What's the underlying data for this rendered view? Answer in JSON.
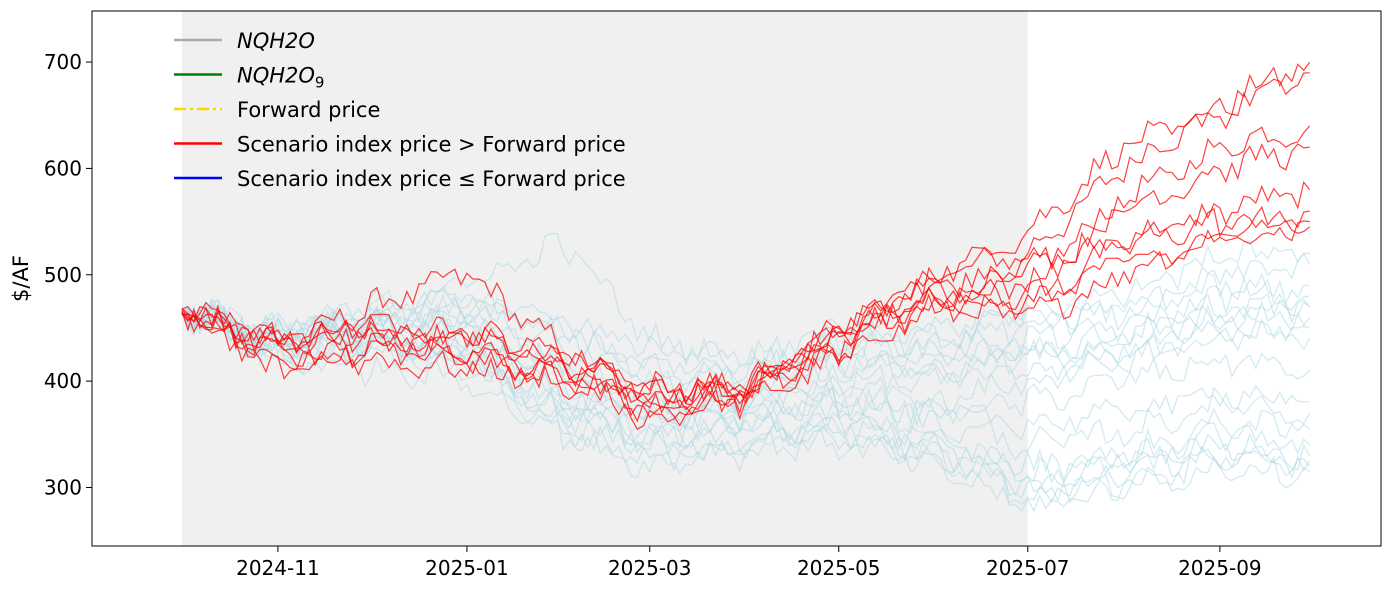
{
  "chart_data": {
    "type": "line",
    "title": "",
    "xlabel": "",
    "ylabel": "$/AF",
    "ylim": [
      245,
      748
    ],
    "xlim": [
      "2024-09-02",
      "2025-10-23"
    ],
    "x_ticks": [
      "2024-11",
      "2025-01",
      "2025-03",
      "2025-05",
      "2025-07",
      "2025-09"
    ],
    "y_ticks": [
      300,
      400,
      500,
      600,
      700
    ],
    "grid": false,
    "legend_position": "top-left",
    "shaded_region": {
      "start": "2024-10-01",
      "end": "2025-07-01",
      "color": "#f0f0f0"
    },
    "legend": [
      {
        "label": "NQH2O",
        "italic": true,
        "color": "#a9a9a9",
        "style": "solid"
      },
      {
        "label": "NQH2O",
        "subscript": "9",
        "italic": true,
        "color": "#008000",
        "style": "solid"
      },
      {
        "label": "Forward price",
        "color": "#ffd700",
        "style": "dashdot"
      },
      {
        "label": "Scenario index price > Forward price",
        "color": "#ff0000",
        "style": "solid"
      },
      {
        "label": "Scenario index price ≤ Forward price",
        "color": "#0000ff",
        "style": "solid"
      }
    ],
    "series_colors": {
      "above_forward": "#ff0000",
      "at_or_below_forward": "#add8e6"
    },
    "series": [
      {
        "group": "above_forward",
        "x": [
          "2024-10-01",
          "2024-11-01",
          "2024-12-01",
          "2025-01-01",
          "2025-02-01",
          "2025-03-01",
          "2025-04-01",
          "2025-05-01",
          "2025-06-01",
          "2025-07-01",
          "2025-08-01",
          "2025-09-01",
          "2025-09-30"
        ],
        "values": [
          468,
          440,
          450,
          445,
          420,
          395,
          390,
          450,
          500,
          520,
          600,
          660,
          700
        ]
      },
      {
        "group": "above_forward",
        "x": [
          "2024-10-01",
          "2024-11-01",
          "2024-12-01",
          "2025-01-01",
          "2025-02-01",
          "2025-03-01",
          "2025-04-01",
          "2025-05-01",
          "2025-06-01",
          "2025-07-01",
          "2025-08-01",
          "2025-09-01",
          "2025-09-30"
        ],
        "values": [
          465,
          430,
          470,
          500,
          430,
          380,
          385,
          440,
          480,
          500,
          570,
          620,
          640
        ]
      },
      {
        "group": "above_forward",
        "x": [
          "2024-10-01",
          "2024-11-01",
          "2024-12-01",
          "2025-01-01",
          "2025-02-01",
          "2025-03-01",
          "2025-04-01",
          "2025-05-01",
          "2025-06-01",
          "2025-07-01",
          "2025-08-01",
          "2025-09-01",
          "2025-09-30"
        ],
        "values": [
          462,
          445,
          440,
          420,
          410,
          390,
          395,
          430,
          490,
          510,
          530,
          560,
          580
        ]
      },
      {
        "group": "above_forward",
        "x": [
          "2024-10-01",
          "2024-11-01",
          "2024-12-01",
          "2025-01-01",
          "2025-02-01",
          "2025-03-01",
          "2025-04-01",
          "2025-05-01",
          "2025-06-01",
          "2025-07-01",
          "2025-08-01",
          "2025-09-01",
          "2025-09-30"
        ],
        "values": [
          468,
          420,
          430,
          440,
          415,
          370,
          380,
          420,
          470,
          460,
          500,
          540,
          560
        ]
      },
      {
        "group": "above_forward",
        "x": [
          "2024-10-01",
          "2024-11-01",
          "2024-12-01",
          "2025-01-01",
          "2025-02-01",
          "2025-03-01",
          "2025-04-01",
          "2025-05-01",
          "2025-06-01",
          "2025-07-01",
          "2025-08-01",
          "2025-09-01",
          "2025-09-30"
        ],
        "values": [
          466,
          440,
          455,
          430,
          400,
          385,
          400,
          440,
          500,
          540,
          620,
          650,
          690
        ]
      },
      {
        "group": "above_forward",
        "x": [
          "2024-10-01",
          "2024-11-01",
          "2024-12-01",
          "2025-01-01",
          "2025-02-01",
          "2025-03-01",
          "2025-04-01",
          "2025-05-01",
          "2025-06-01",
          "2025-07-01",
          "2025-08-01",
          "2025-09-01",
          "2025-09-30"
        ],
        "values": [
          464,
          410,
          430,
          425,
          405,
          360,
          390,
          450,
          495,
          470,
          530,
          550,
          545
        ]
      },
      {
        "group": "above_forward",
        "x": [
          "2024-10-01",
          "2024-11-01",
          "2024-12-01",
          "2025-01-01",
          "2025-02-01",
          "2025-03-01",
          "2025-04-01",
          "2025-05-01",
          "2025-06-01",
          "2025-07-01",
          "2025-08-01",
          "2025-09-01",
          "2025-09-30"
        ],
        "values": [
          468,
          435,
          445,
          445,
          430,
          395,
          385,
          430,
          480,
          490,
          560,
          600,
          620
        ]
      },
      {
        "group": "above_forward",
        "x": [
          "2024-10-01",
          "2024-11-01",
          "2024-12-01",
          "2025-01-01",
          "2025-02-01",
          "2025-03-01",
          "2025-04-01",
          "2025-05-01",
          "2025-06-01",
          "2025-07-01",
          "2025-08-01",
          "2025-09-01",
          "2025-09-30"
        ],
        "values": [
          463,
          425,
          420,
          410,
          400,
          375,
          392,
          445,
          470,
          480,
          510,
          530,
          550
        ]
      },
      {
        "group": "at_or_below_forward",
        "x": [
          "2024-10-01",
          "2024-11-01",
          "2024-12-01",
          "2025-01-01",
          "2025-02-01",
          "2025-03-01",
          "2025-04-01",
          "2025-05-01",
          "2025-06-01",
          "2025-07-01",
          "2025-08-01",
          "2025-09-01",
          "2025-09-30"
        ],
        "values": [
          466,
          440,
          450,
          430,
          360,
          340,
          350,
          360,
          350,
          310,
          330,
          340,
          330
        ]
      },
      {
        "group": "at_or_below_forward",
        "x": [
          "2024-10-01",
          "2024-11-01",
          "2024-12-01",
          "2025-01-01",
          "2025-02-01",
          "2025-03-01",
          "2025-04-01",
          "2025-05-01",
          "2025-06-01",
          "2025-07-01",
          "2025-08-01",
          "2025-09-01",
          "2025-09-30"
        ],
        "values": [
          464,
          430,
          440,
          420,
          370,
          350,
          360,
          350,
          330,
          300,
          320,
          330,
          320
        ]
      },
      {
        "group": "at_or_below_forward",
        "x": [
          "2024-10-01",
          "2024-11-01",
          "2024-12-01",
          "2025-01-01",
          "2025-02-01",
          "2025-03-01",
          "2025-04-01",
          "2025-05-01",
          "2025-06-01",
          "2025-07-01",
          "2025-08-01",
          "2025-09-01",
          "2025-09-30"
        ],
        "values": [
          468,
          450,
          460,
          460,
          410,
          380,
          390,
          420,
          420,
          430,
          430,
          460,
          470
        ]
      },
      {
        "group": "at_or_below_forward",
        "x": [
          "2024-10-01",
          "2024-11-01",
          "2024-12-01",
          "2025-01-01",
          "2025-02-01",
          "2025-03-01",
          "2025-04-01",
          "2025-05-01",
          "2025-06-01",
          "2025-07-01",
          "2025-08-01",
          "2025-09-01",
          "2025-09-30"
        ],
        "values": [
          466,
          445,
          455,
          470,
          430,
          400,
          400,
          430,
          430,
          440,
          450,
          480,
          490
        ]
      },
      {
        "group": "at_or_below_forward",
        "x": [
          "2024-10-01",
          "2024-11-01",
          "2024-12-01",
          "2025-01-01",
          "2025-02-01",
          "2025-03-01",
          "2025-04-01",
          "2025-05-01",
          "2025-06-01",
          "2025-07-01",
          "2025-08-01",
          "2025-09-01",
          "2025-09-30"
        ],
        "values": [
          465,
          420,
          430,
          440,
          390,
          360,
          370,
          380,
          370,
          380,
          400,
          420,
          410
        ]
      },
      {
        "group": "at_or_below_forward",
        "x": [
          "2024-10-01",
          "2024-11-01",
          "2024-12-01",
          "2025-01-01",
          "2025-02-01",
          "2025-03-01",
          "2025-04-01",
          "2025-05-01",
          "2025-06-01",
          "2025-07-01",
          "2025-08-01",
          "2025-09-01",
          "2025-09-30"
        ],
        "values": [
          467,
          435,
          445,
          450,
          380,
          340,
          340,
          370,
          340,
          290,
          310,
          350,
          340
        ]
      },
      {
        "group": "at_or_below_forward",
        "x": [
          "2024-10-01",
          "2024-11-01",
          "2024-12-01",
          "2025-01-01",
          "2025-02-01",
          "2025-03-01",
          "2025-04-01",
          "2025-05-01",
          "2025-06-01",
          "2025-07-01",
          "2025-08-01",
          "2025-09-01",
          "2025-09-30"
        ],
        "values": [
          463,
          440,
          460,
          480,
          440,
          420,
          410,
          440,
          440,
          460,
          460,
          500,
          510
        ]
      },
      {
        "group": "at_or_below_forward",
        "x": [
          "2024-10-01",
          "2024-11-01",
          "2024-12-01",
          "2025-01-01",
          "2025-02-01",
          "2025-03-01",
          "2025-04-01",
          "2025-05-01",
          "2025-06-01",
          "2025-07-01",
          "2025-08-01",
          "2025-09-01",
          "2025-09-30"
        ],
        "values": [
          466,
          430,
          440,
          420,
          350,
          320,
          340,
          340,
          320,
          280,
          300,
          330,
          325
        ]
      },
      {
        "group": "at_or_below_forward",
        "x": [
          "2024-10-01",
          "2024-11-01",
          "2024-12-01",
          "2025-01-01",
          "2025-02-01",
          "2025-03-01",
          "2025-04-01",
          "2025-05-01",
          "2025-06-01",
          "2025-07-01",
          "2025-08-01",
          "2025-09-01",
          "2025-09-30"
        ],
        "values": [
          468,
          450,
          470,
          490,
          530,
          440,
          420,
          420,
          410,
          420,
          440,
          460,
          460
        ]
      },
      {
        "group": "at_or_below_forward",
        "x": [
          "2024-10-01",
          "2024-11-01",
          "2024-12-01",
          "2025-01-01",
          "2025-02-01",
          "2025-03-01",
          "2025-04-01",
          "2025-05-01",
          "2025-06-01",
          "2025-07-01",
          "2025-08-01",
          "2025-09-01",
          "2025-09-30"
        ],
        "values": [
          464,
          425,
          435,
          430,
          380,
          360,
          380,
          400,
          380,
          400,
          420,
          440,
          450
        ]
      },
      {
        "group": "at_or_below_forward",
        "x": [
          "2024-10-01",
          "2024-11-01",
          "2024-12-01",
          "2025-01-01",
          "2025-02-01",
          "2025-03-01",
          "2025-04-01",
          "2025-05-01",
          "2025-06-01",
          "2025-07-01",
          "2025-08-01",
          "2025-09-01",
          "2025-09-30"
        ],
        "values": [
          466,
          445,
          455,
          440,
          400,
          370,
          360,
          390,
          370,
          360,
          370,
          390,
          380
        ]
      },
      {
        "group": "at_or_below_forward",
        "x": [
          "2024-10-01",
          "2024-11-01",
          "2024-12-01",
          "2025-01-01",
          "2025-02-01",
          "2025-03-01",
          "2025-04-01",
          "2025-05-01",
          "2025-06-01",
          "2025-07-01",
          "2025-08-01",
          "2025-09-01",
          "2025-09-30"
        ],
        "values": [
          465,
          440,
          460,
          470,
          450,
          410,
          400,
          430,
          440,
          450,
          470,
          490,
          480
        ]
      },
      {
        "group": "at_or_below_forward",
        "x": [
          "2024-10-01",
          "2024-11-01",
          "2024-12-01",
          "2025-01-01",
          "2025-02-01",
          "2025-03-01",
          "2025-04-01",
          "2025-05-01",
          "2025-06-01",
          "2025-07-01",
          "2025-08-01",
          "2025-09-01",
          "2025-09-30"
        ],
        "values": [
          467,
          420,
          410,
          400,
          350,
          330,
          330,
          360,
          330,
          300,
          300,
          320,
          315
        ]
      },
      {
        "group": "at_or_below_forward",
        "x": [
          "2024-10-01",
          "2024-11-01",
          "2024-12-01",
          "2025-01-01",
          "2025-02-01",
          "2025-03-01",
          "2025-04-01",
          "2025-05-01",
          "2025-06-01",
          "2025-07-01",
          "2025-08-01",
          "2025-09-01",
          "2025-09-30"
        ],
        "values": [
          463,
          430,
          450,
          460,
          420,
          390,
          380,
          410,
          410,
          430,
          440,
          470,
          470
        ]
      },
      {
        "group": "at_or_below_forward",
        "x": [
          "2024-10-01",
          "2024-11-01",
          "2024-12-01",
          "2025-01-01",
          "2025-02-01",
          "2025-03-01",
          "2025-04-01",
          "2025-05-01",
          "2025-06-01",
          "2025-07-01",
          "2025-08-01",
          "2025-09-01",
          "2025-09-30"
        ],
        "values": [
          468,
          445,
          440,
          420,
          370,
          350,
          360,
          350,
          340,
          320,
          330,
          360,
          355
        ]
      },
      {
        "group": "at_or_below_forward",
        "x": [
          "2024-10-01",
          "2024-11-01",
          "2024-12-01",
          "2025-01-01",
          "2025-02-01",
          "2025-03-01",
          "2025-04-01",
          "2025-05-01",
          "2025-06-01",
          "2025-07-01",
          "2025-08-01",
          "2025-09-01",
          "2025-09-30"
        ],
        "values": [
          465,
          440,
          470,
          480,
          460,
          430,
          420,
          450,
          450,
          470,
          480,
          520,
          520
        ]
      },
      {
        "group": "at_or_below_forward",
        "x": [
          "2024-10-01",
          "2024-11-01",
          "2024-12-01",
          "2025-01-01",
          "2025-02-01",
          "2025-03-01",
          "2025-04-01",
          "2025-05-01",
          "2025-06-01",
          "2025-07-01",
          "2025-08-01",
          "2025-09-01",
          "2025-09-30"
        ],
        "values": [
          466,
          430,
          430,
          410,
          380,
          370,
          380,
          400,
          400,
          410,
          420,
          450,
          440
        ]
      },
      {
        "group": "at_or_below_forward",
        "x": [
          "2024-10-01",
          "2024-11-01",
          "2024-12-01",
          "2025-01-01",
          "2025-02-01",
          "2025-03-01",
          "2025-04-01",
          "2025-05-01",
          "2025-06-01",
          "2025-07-01",
          "2025-08-01",
          "2025-09-01",
          "2025-09-30"
        ],
        "values": [
          464,
          450,
          455,
          450,
          410,
          380,
          370,
          380,
          360,
          340,
          350,
          380,
          370
        ]
      }
    ]
  }
}
